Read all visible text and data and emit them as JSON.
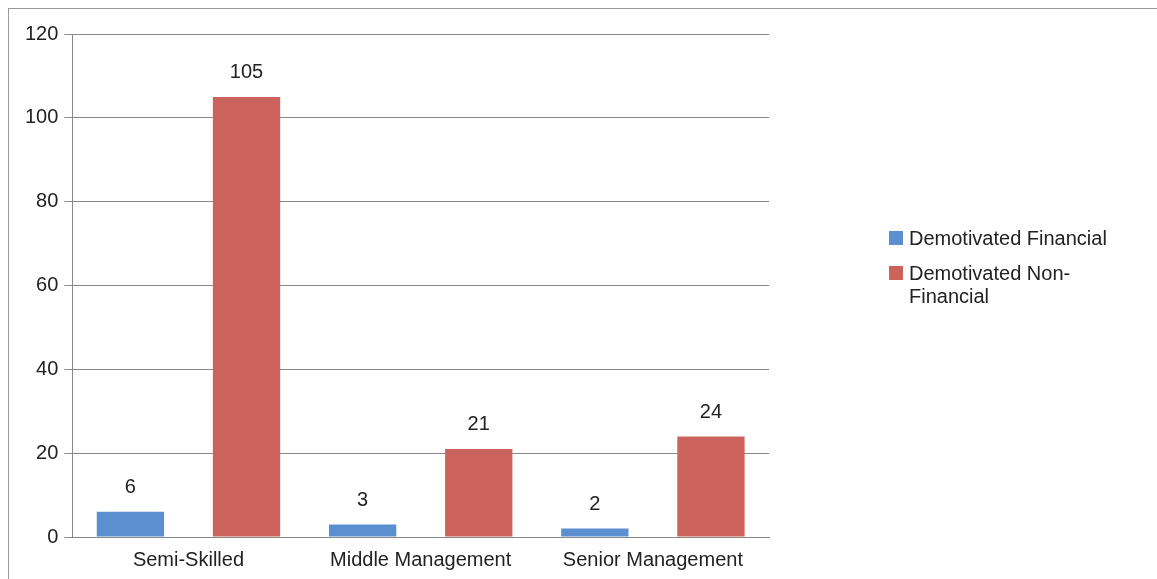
{
  "chart_data": {
    "type": "bar",
    "categories": [
      "Semi-Skilled",
      "Middle Management",
      "Senior Management"
    ],
    "series": [
      {
        "name": "Demotivated Financial",
        "color": "#5b8fcf",
        "values": [
          6,
          3,
          2
        ]
      },
      {
        "name": "Demotivated Non-Financial",
        "color": "#cd635d",
        "values": [
          105,
          21,
          24
        ]
      }
    ],
    "ylim": [
      0,
      120
    ],
    "yticks": [
      0,
      20,
      40,
      60,
      80,
      100,
      120
    ],
    "grid": "y",
    "legend": "right",
    "data_labels": true
  }
}
